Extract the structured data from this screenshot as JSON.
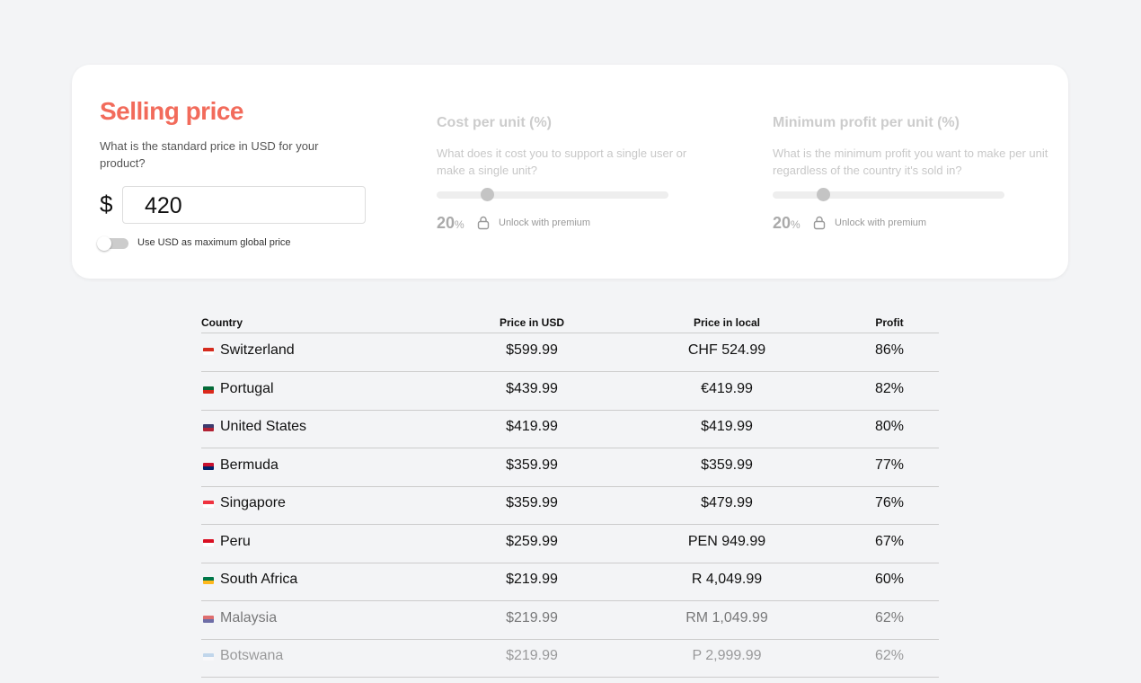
{
  "selling_price": {
    "title": "Selling price",
    "description": "What is the standard price in USD for your product?",
    "currency_symbol": "$",
    "input_value": "420",
    "toggle_label": "Use USD as maximum global price"
  },
  "cost_per_unit": {
    "title": "Cost per unit (%)",
    "description": "What does it cost you to support a single user or make a single unit?",
    "value": "20",
    "unit": "%",
    "lock_label": "Unlock with premium"
  },
  "minimum_profit": {
    "title": "Minimum profit per unit (%)",
    "description": "What is the minimum profit you want to make per unit regardless of the country it's sold in?",
    "value": "20",
    "unit": "%",
    "lock_label": "Unlock with premium"
  },
  "table": {
    "headers": [
      "Country",
      "Price in USD",
      "Price in local",
      "Profit"
    ],
    "rows": [
      [
        "Switzerland",
        "$599.99",
        "CHF 524.99",
        "86%"
      ],
      [
        "Portugal",
        "$439.99",
        "€419.99",
        "82%"
      ],
      [
        "United States",
        "$419.99",
        "$419.99",
        "80%"
      ],
      [
        "Bermuda",
        "$359.99",
        "$359.99",
        "77%"
      ],
      [
        "Singapore",
        "$359.99",
        "$479.99",
        "76%"
      ],
      [
        "Peru",
        "$259.99",
        "PEN 949.99",
        "67%"
      ],
      [
        "South Africa",
        "$219.99",
        "R 4,049.99",
        "60%"
      ],
      [
        "Malaysia",
        "$219.99",
        "RM 1,049.99",
        "62%"
      ],
      [
        "Botswana",
        "$219.99",
        "P 2,999.99",
        "62%"
      ]
    ]
  }
}
